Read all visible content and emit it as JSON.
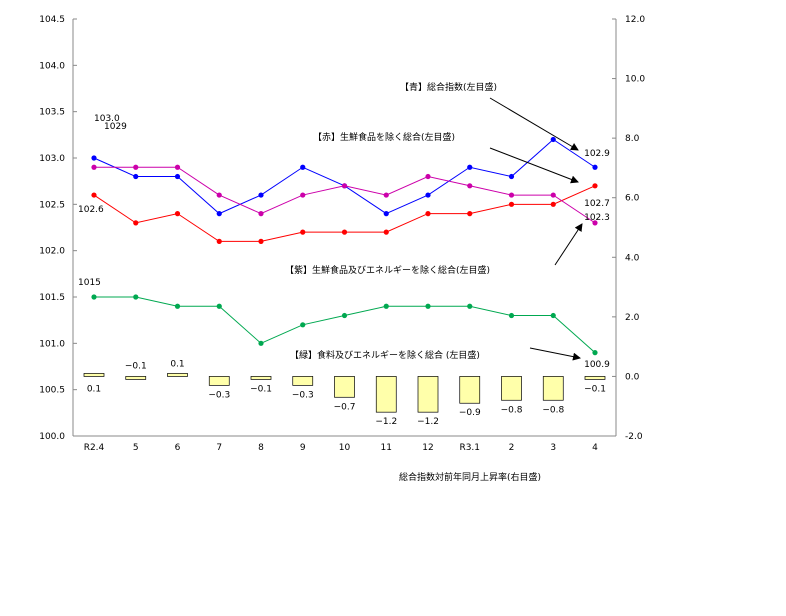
{
  "chart_data": {
    "type": "line",
    "categories": [
      "R2.4",
      "5",
      "6",
      "7",
      "8",
      "9",
      "10",
      "11",
      "12",
      "R3.1",
      "2",
      "3",
      "4"
    ],
    "left_axis": {
      "ylim": [
        100.0,
        104.5
      ],
      "ticks": [
        "100.0",
        "100.5",
        "101.0",
        "101.5",
        "102.0",
        "102.5",
        "103.0",
        "103.5",
        "104.0",
        "104.5"
      ]
    },
    "right_axis": {
      "ylim": [
        -2.0,
        12.0
      ],
      "ticks": [
        "-2.0",
        "0.0",
        "2.0",
        "4.0",
        "6.0",
        "8.0",
        "10.0",
        "12.0"
      ]
    },
    "grid": false,
    "series": [
      {
        "name": "【青】総合指数(左目盛)",
        "axis": "left",
        "color": "#0000ff",
        "values": [
          103.0,
          102.8,
          102.8,
          102.4,
          102.6,
          102.9,
          102.7,
          102.4,
          102.6,
          102.9,
          102.8,
          103.2,
          102.9
        ],
        "start_label": "103.0",
        "end_label": "102.9"
      },
      {
        "name": "【赤】生鮮食品を除く総合(左目盛)",
        "axis": "left",
        "color": "#ff0000",
        "values": [
          102.6,
          102.3,
          102.4,
          102.1,
          102.1,
          102.2,
          102.2,
          102.2,
          102.4,
          102.4,
          102.5,
          102.5,
          102.7
        ],
        "start_label": "102.6",
        "end_label": "102.7"
      },
      {
        "name": "【紫】生鮮食品及びエネルギーを除く総合(左目盛)",
        "axis": "left",
        "color": "#cc00aa",
        "values": [
          102.9,
          102.9,
          102.9,
          102.6,
          102.4,
          102.6,
          102.7,
          102.6,
          102.8,
          102.7,
          102.6,
          102.6,
          102.3
        ],
        "start_label": "1029",
        "end_label": "102.3"
      },
      {
        "name": "【緑】食料及びエネルギーを除く総合 (左目盛)",
        "axis": "left",
        "color": "#00a850",
        "values": [
          101.5,
          101.5,
          101.4,
          101.4,
          101.0,
          101.2,
          101.3,
          101.4,
          101.4,
          101.4,
          101.3,
          101.3,
          100.9
        ],
        "start_label": "1015",
        "end_label": "100.9"
      },
      {
        "name": "総合指数対前年同月上昇率(右目盛)",
        "axis": "right",
        "type": "bar",
        "color": "#ffffaa",
        "values": [
          0.1,
          -0.1,
          0.1,
          -0.3,
          -0.1,
          -0.3,
          -0.7,
          -1.2,
          -1.2,
          -0.9,
          -0.8,
          -0.8,
          -0.1
        ],
        "labels": [
          "0.1",
          "−0.1",
          "0.1",
          "−0.3",
          "−0.1",
          "−0.3",
          "−0.7",
          "−1.2",
          "−1.2",
          "−0.9",
          "−0.8",
          "−0.8",
          "−0.1"
        ]
      }
    ]
  }
}
